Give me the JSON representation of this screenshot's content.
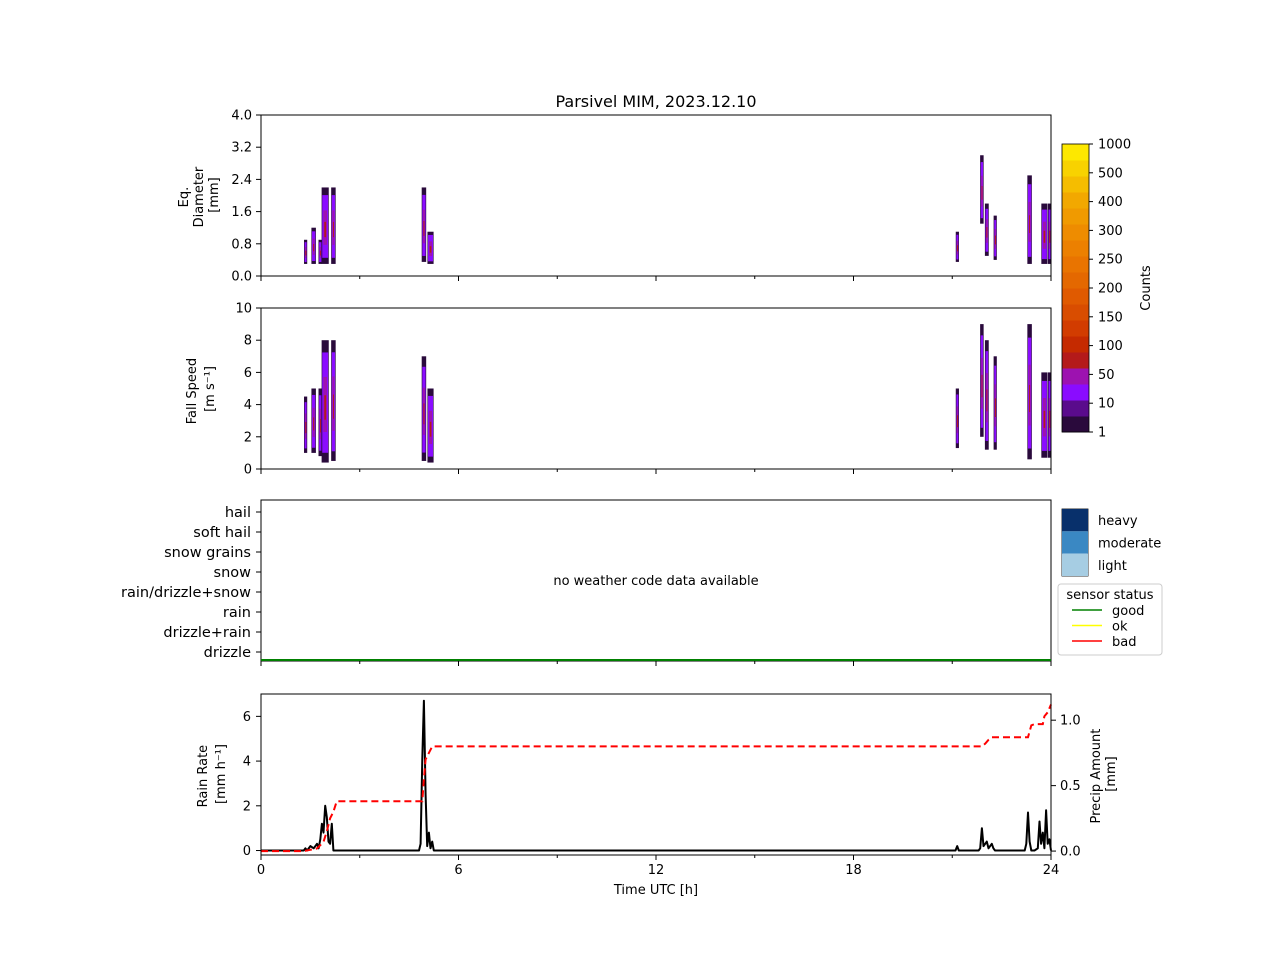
{
  "title": "Parsivel MIM, 2023.12.10",
  "panels": {
    "diameter": {
      "ylabel": [
        "Eq.",
        "Diameter",
        "[mm]"
      ],
      "yticks": [
        "0.0",
        "0.8",
        "1.6",
        "2.4",
        "3.2",
        "4.0"
      ],
      "ylim": [
        0,
        4
      ]
    },
    "speed": {
      "ylabel": [
        "Fall Speed",
        "[m s⁻¹]"
      ],
      "yticks": [
        "0",
        "2",
        "4",
        "6",
        "8",
        "10"
      ],
      "ylim": [
        0,
        10
      ]
    },
    "weather": {
      "categories": [
        "drizzle",
        "drizzle+rain",
        "rain",
        "rain/drizzle+snow",
        "snow",
        "snow grains",
        "soft hail",
        "hail"
      ],
      "message": "no weather code data available"
    },
    "rain": {
      "ylabel": [
        "Rain Rate",
        "[mm h⁻¹]"
      ],
      "ylabel_right": [
        "Precip Amount",
        "[mm]"
      ],
      "yticks": [
        "0",
        "2",
        "4",
        "6"
      ],
      "yticks_right": [
        "0.0",
        "0.5",
        "1.0"
      ],
      "xlabel": "Time UTC [h]",
      "xticks": [
        "0",
        "6",
        "12",
        "18",
        "24"
      ]
    }
  },
  "colorbar": {
    "label": "Counts",
    "ticks": [
      "1",
      "10",
      "50",
      "100",
      "150",
      "200",
      "250",
      "300",
      "400",
      "500",
      "1000"
    ],
    "colors": [
      "#2a0a3c",
      "#5a0b8c",
      "#8a0cff",
      "#9d12b0",
      "#b41a1a",
      "#c52a00",
      "#d23c00",
      "#d94d00",
      "#e05a00",
      "#e46800",
      "#e97400",
      "#ec8000",
      "#ee8c00",
      "#f09a00",
      "#f2a800",
      "#f5bd00",
      "#f8d200",
      "#fde800"
    ]
  },
  "weather_legend": {
    "intensities": [
      {
        "label": "heavy",
        "color": "#08306b"
      },
      {
        "label": "moderate",
        "color": "#3a88c3"
      },
      {
        "label": "light",
        "color": "#a6cde3"
      }
    ],
    "sensor_title": "sensor status",
    "sensor": [
      {
        "label": "good",
        "color": "#008000"
      },
      {
        "label": "ok",
        "color": "#ffff00"
      },
      {
        "label": "bad",
        "color": "#ff0000"
      }
    ]
  },
  "chart_data": [
    {
      "type": "heatmap",
      "name_hint": "diameter",
      "xlim": [
        0,
        24
      ],
      "ylim": [
        0,
        4
      ],
      "ylabel": "Eq. Diameter [mm]",
      "events": [
        {
          "t": 1.35,
          "w": 0.05,
          "lo": 0.3,
          "hi": 0.9
        },
        {
          "t": 1.6,
          "w": 0.1,
          "lo": 0.3,
          "hi": 1.2
        },
        {
          "t": 1.8,
          "w": 0.07,
          "lo": 0.3,
          "hi": 0.9
        },
        {
          "t": 1.95,
          "w": 0.18,
          "lo": 0.3,
          "hi": 2.2
        },
        {
          "t": 2.2,
          "w": 0.1,
          "lo": 0.3,
          "hi": 2.2
        },
        {
          "t": 4.95,
          "w": 0.1,
          "lo": 0.35,
          "hi": 2.2
        },
        {
          "t": 5.15,
          "w": 0.15,
          "lo": 0.3,
          "hi": 1.1
        },
        {
          "t": 21.15,
          "w": 0.05,
          "lo": 0.35,
          "hi": 1.1
        },
        {
          "t": 21.9,
          "w": 0.07,
          "lo": 1.3,
          "hi": 3.0
        },
        {
          "t": 22.05,
          "w": 0.08,
          "lo": 0.5,
          "hi": 1.8
        },
        {
          "t": 22.3,
          "w": 0.05,
          "lo": 0.4,
          "hi": 1.5
        },
        {
          "t": 23.35,
          "w": 0.1,
          "lo": 0.3,
          "hi": 2.5
        },
        {
          "t": 23.8,
          "w": 0.15,
          "lo": 0.3,
          "hi": 1.8
        },
        {
          "t": 23.95,
          "w": 0.05,
          "lo": 0.3,
          "hi": 1.8
        }
      ]
    },
    {
      "type": "heatmap",
      "name_hint": "speed",
      "xlim": [
        0,
        24
      ],
      "ylim": [
        0,
        10
      ],
      "ylabel": "Fall Speed [m s⁻¹]",
      "events": [
        {
          "t": 1.35,
          "w": 0.05,
          "lo": 1.0,
          "hi": 4.5
        },
        {
          "t": 1.6,
          "w": 0.1,
          "lo": 1.0,
          "hi": 5.0
        },
        {
          "t": 1.8,
          "w": 0.07,
          "lo": 0.8,
          "hi": 5.0
        },
        {
          "t": 1.95,
          "w": 0.18,
          "lo": 0.4,
          "hi": 8.0
        },
        {
          "t": 2.2,
          "w": 0.1,
          "lo": 0.5,
          "hi": 8.0
        },
        {
          "t": 4.95,
          "w": 0.1,
          "lo": 0.5,
          "hi": 7.0
        },
        {
          "t": 5.15,
          "w": 0.15,
          "lo": 0.4,
          "hi": 5.0
        },
        {
          "t": 21.15,
          "w": 0.05,
          "lo": 1.3,
          "hi": 5.0
        },
        {
          "t": 21.9,
          "w": 0.07,
          "lo": 2.0,
          "hi": 9.0
        },
        {
          "t": 22.05,
          "w": 0.08,
          "lo": 1.2,
          "hi": 8.0
        },
        {
          "t": 22.3,
          "w": 0.05,
          "lo": 1.2,
          "hi": 7.0
        },
        {
          "t": 23.35,
          "w": 0.1,
          "lo": 0.6,
          "hi": 9.0
        },
        {
          "t": 23.8,
          "w": 0.15,
          "lo": 0.7,
          "hi": 6.0
        },
        {
          "t": 23.95,
          "w": 0.05,
          "lo": 0.7,
          "hi": 6.0
        }
      ]
    },
    {
      "type": "line",
      "xlim": [
        0,
        24
      ],
      "ylim": [
        -0.2,
        7.0
      ],
      "xlabel": "Time UTC [h]",
      "ylabel": "Rain Rate [mm h⁻¹]",
      "series": [
        {
          "x": [
            0,
            1.3,
            1.35,
            1.4,
            1.5,
            1.6,
            1.7,
            1.75,
            1.8,
            1.85,
            1.9,
            1.95,
            2.0,
            2.05,
            2.1,
            2.15,
            2.2,
            2.25,
            2.3,
            4.8,
            4.85,
            4.9,
            4.95,
            5.0,
            5.05,
            5.1,
            5.15,
            5.2,
            5.25,
            5.3,
            5.35,
            21.1,
            21.15,
            21.2,
            21.8,
            21.85,
            21.9,
            21.95,
            22.0,
            22.05,
            22.1,
            22.2,
            22.25,
            22.3,
            22.4,
            23.2,
            23.25,
            23.3,
            23.35,
            23.4,
            23.5,
            23.6,
            23.65,
            23.7,
            23.75,
            23.8,
            23.85,
            23.9,
            23.95,
            24.0
          ],
          "y": [
            0,
            0,
            0.1,
            0,
            0.2,
            0.1,
            0.3,
            0.1,
            0.5,
            1.2,
            0.8,
            2.0,
            1.5,
            0.4,
            0.3,
            1.2,
            0,
            0,
            0,
            0,
            0.3,
            4.1,
            6.7,
            2.5,
            0.2,
            0.8,
            0.1,
            0.4,
            0,
            0,
            0,
            0,
            0.2,
            0,
            0,
            0.1,
            1.0,
            0.2,
            0.3,
            0.4,
            0.1,
            0.3,
            0.1,
            0,
            0,
            0,
            0.3,
            1.7,
            0.4,
            0,
            0,
            0.1,
            1.3,
            0.3,
            0.8,
            0.1,
            1.8,
            0.3,
            0.5,
            0
          ]
        }
      ]
    },
    {
      "type": "line",
      "axis": "right",
      "xlim": [
        0,
        24
      ],
      "ylim": [
        -0.03,
        1.2
      ],
      "ylabel": "Precip Amount [mm]",
      "series": [
        {
          "x": [
            0,
            1.3,
            1.5,
            1.7,
            1.9,
            2.0,
            2.1,
            2.2,
            2.3,
            4.9,
            4.95,
            5.0,
            5.1,
            5.2,
            5.3,
            21.9,
            22.0,
            22.1,
            22.2,
            23.3,
            23.4,
            23.5,
            23.75,
            23.8,
            23.9,
            24.0
          ],
          "y": [
            0,
            0,
            0.01,
            0.02,
            0.07,
            0.15,
            0.25,
            0.3,
            0.38,
            0.38,
            0.55,
            0.7,
            0.75,
            0.8,
            0.8,
            0.8,
            0.82,
            0.85,
            0.87,
            0.87,
            0.96,
            0.97,
            0.97,
            1.03,
            1.06,
            1.12
          ]
        }
      ]
    }
  ]
}
